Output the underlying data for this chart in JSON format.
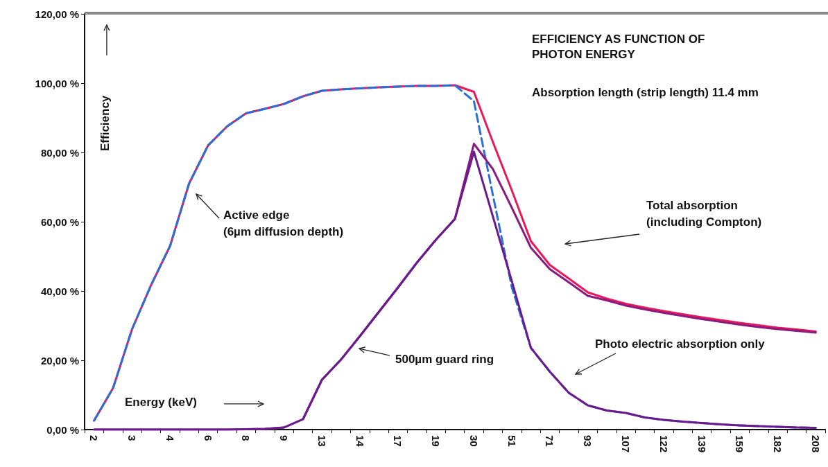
{
  "chart_data": {
    "type": "line",
    "title": "EFFICIENCY AS FUNCTION OF PHOTON ENERGY",
    "subtitle": "Absorption length (strip length) 11.4 mm",
    "xlabel": "Energy (keV)",
    "ylabel": "Efficiency",
    "annotations": [
      "Active edge\n(6µm diffusion depth)",
      "500µm guard ring",
      "Total absorption\n(including Compton)",
      "Photo electric absorption only"
    ],
    "categories": [
      "2",
      null,
      "3",
      null,
      "4",
      null,
      "6",
      null,
      "8",
      null,
      "9",
      null,
      "13",
      null,
      "14",
      null,
      "17",
      null,
      "19",
      null,
      "30",
      null,
      "51",
      null,
      "71",
      null,
      "93",
      null,
      "107",
      null,
      "122",
      null,
      "139",
      null,
      "159",
      null,
      "182",
      null,
      "208"
    ],
    "series": [
      {
        "color": "#e8185a",
        "values": [
          2.6,
          12,
          29,
          41.7,
          53,
          71,
          82,
          87.5,
          91.3,
          92.6,
          94,
          96.2,
          97.8,
          98.2,
          98.5,
          98.8,
          99,
          99.2,
          99.2,
          99.4,
          97.5,
          83,
          69,
          54.4,
          47.5,
          43.6,
          39.6,
          37.8,
          36.3,
          35.2,
          34.2,
          33.3,
          32.4,
          31.6,
          30.8,
          30.1,
          29.4,
          28.9,
          28.3
        ]
      },
      {
        "color": "#2b6fd6",
        "line_style": "dashed",
        "values": [
          2.6,
          12,
          29,
          41.7,
          53,
          71,
          82,
          87.5,
          91.3,
          92.6,
          94,
          96.2,
          97.8,
          98.2,
          98.5,
          98.8,
          99,
          99.2,
          99.2,
          99.4,
          94.8,
          67.7,
          41,
          23.6,
          16.7,
          10.6,
          7,
          5.5,
          4.8,
          3.5,
          2.8,
          2.3,
          1.9,
          1.5,
          1.2,
          1,
          0.8,
          0.6,
          0.5
        ]
      },
      {
        "color": "#8a1a7e",
        "values": [
          0,
          0,
          0,
          0,
          0,
          0,
          0,
          0,
          0.1,
          0.2,
          0.6,
          3,
          14.4,
          20.2,
          27,
          34,
          41,
          48.2,
          54.8,
          60.8,
          82.5,
          75.2,
          64,
          52.5,
          46.3,
          42.5,
          38.6,
          37.3,
          35.8,
          34.7,
          33.7,
          32.8,
          31.9,
          31.1,
          30.3,
          29.6,
          29,
          28.5,
          28
        ]
      },
      {
        "color": "#6a1a8e",
        "values": [
          0,
          0,
          0,
          0,
          0,
          0,
          0,
          0,
          0.1,
          0.2,
          0.6,
          3,
          14.4,
          20.2,
          27,
          34,
          41,
          48.2,
          54.8,
          60.8,
          80.2,
          61.5,
          42.8,
          23.6,
          16.7,
          10.6,
          7,
          5.5,
          4.8,
          3.5,
          2.8,
          2.3,
          1.9,
          1.5,
          1.2,
          1,
          0.8,
          0.6,
          0.5
        ]
      }
    ],
    "ylim": [
      0,
      120
    ],
    "yticks": [
      {
        "value": 0,
        "label": "0,00 %"
      },
      {
        "value": 20,
        "label": "20,00 %"
      },
      {
        "value": 40,
        "label": "40,00 %"
      },
      {
        "value": 60,
        "label": "60,00 %"
      },
      {
        "value": 80,
        "label": "80,00 %"
      },
      {
        "value": 100,
        "label": "100,00 %"
      },
      {
        "value": 120,
        "label": "120,00 %"
      }
    ],
    "grid": false,
    "marker": "none",
    "line_style": "solid"
  }
}
